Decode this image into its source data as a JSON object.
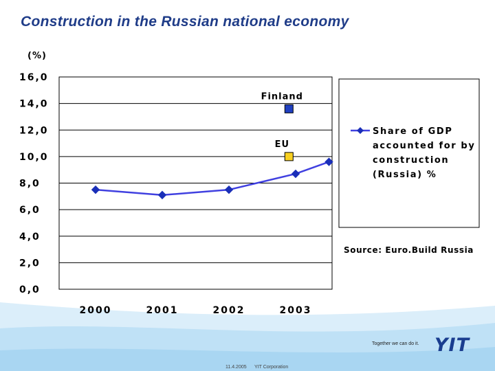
{
  "slide": {
    "title": "Construction in the Russian national economy",
    "tagline": "Together we can do it.",
    "footer_date": "11.4.2005",
    "footer_corp": "YIT Corporation",
    "logo_text": "YIT",
    "colors": {
      "title": "#1f3c88",
      "band_light": "#dbeefa",
      "band_mid": "#bfe1f6",
      "logo": "#1a3d8f"
    }
  },
  "chart_data": {
    "type": "line",
    "ylabel": "(%)",
    "ylim": [
      0,
      16
    ],
    "yticks": [
      "0,0",
      "2,0",
      "4,0",
      "6,0",
      "8,0",
      "10,0",
      "12,0",
      "14,0",
      "16,0"
    ],
    "categories": [
      "2000",
      "2001",
      "2002",
      "2003"
    ],
    "grid": true,
    "series": [
      {
        "name": "Share of GDP accounted for by construction (Russia) %",
        "legend_lines": [
          "Share of GDP",
          "accounted for by",
          "construction",
          "(Russia) %"
        ],
        "x": [
          2000,
          2001,
          2002,
          2003,
          2003.5
        ],
        "values": [
          7.5,
          7.1,
          7.5,
          8.7,
          9.6
        ],
        "color": "#4040e0",
        "marker": "diamond"
      }
    ],
    "reference_points": [
      {
        "label": "Finland",
        "x": 2002.9,
        "value": 13.6,
        "color": "#2040c0"
      },
      {
        "label": "EU",
        "x": 2002.9,
        "value": 10.0,
        "color": "#f8d020"
      }
    ],
    "legend_position": "right",
    "source": "Source: Euro.Build Russia"
  }
}
